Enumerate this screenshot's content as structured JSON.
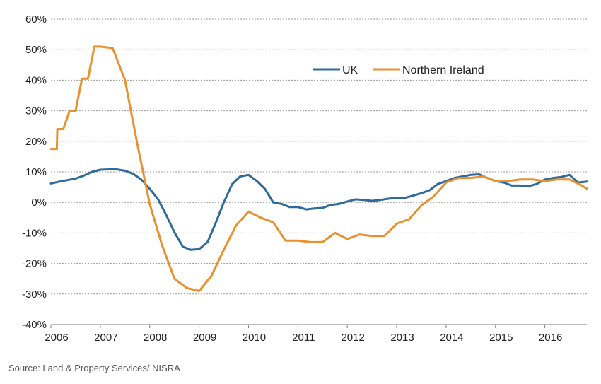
{
  "chart_data": {
    "type": "line",
    "title": "",
    "xlabel": "",
    "ylabel": "",
    "xlim": [
      2006.0,
      2016.85
    ],
    "ylim": [
      -40,
      60
    ],
    "y_ticks": [
      60,
      50,
      40,
      30,
      20,
      10,
      0,
      -10,
      -20,
      -30,
      -40
    ],
    "y_tick_labels": [
      "60%",
      "50%",
      "40%",
      "30%",
      "20%",
      "10%",
      "0%",
      "-10%",
      "-20%",
      "-30%",
      "-40%"
    ],
    "x_ticks": [
      2006,
      2007,
      2008,
      2009,
      2010,
      2011,
      2012,
      2013,
      2014,
      2015,
      2016
    ],
    "x_tick_labels": [
      "2006",
      "2007",
      "2008",
      "2009",
      "2010",
      "2011",
      "2012",
      "2013",
      "2014",
      "2015",
      "2016"
    ],
    "grid": "horizontal-dashed",
    "legend_position": "top-right",
    "series": [
      {
        "name": "UK",
        "color": "#2e6a9c",
        "x": [
          2006.0,
          2006.17,
          2006.33,
          2006.5,
          2006.67,
          2006.83,
          2007.0,
          2007.17,
          2007.33,
          2007.5,
          2007.67,
          2007.83,
          2008.0,
          2008.17,
          2008.33,
          2008.5,
          2008.67,
          2008.83,
          2009.0,
          2009.17,
          2009.33,
          2009.5,
          2009.67,
          2009.83,
          2010.0,
          2010.17,
          2010.33,
          2010.5,
          2010.67,
          2010.83,
          2011.0,
          2011.17,
          2011.33,
          2011.5,
          2011.67,
          2011.83,
          2012.0,
          2012.17,
          2012.33,
          2012.5,
          2012.67,
          2012.83,
          2013.0,
          2013.17,
          2013.33,
          2013.5,
          2013.67,
          2013.83,
          2014.0,
          2014.17,
          2014.33,
          2014.5,
          2014.67,
          2014.83,
          2015.0,
          2015.17,
          2015.33,
          2015.5,
          2015.67,
          2015.83,
          2016.0,
          2016.17,
          2016.33,
          2016.5,
          2016.67,
          2016.85
        ],
        "values": [
          6.2,
          6.8,
          7.3,
          7.8,
          8.8,
          10.0,
          10.7,
          10.8,
          10.8,
          10.4,
          9.3,
          7.5,
          4.5,
          1.0,
          -4.0,
          -9.8,
          -14.5,
          -15.5,
          -15.3,
          -13.0,
          -7.0,
          0.0,
          6.0,
          8.5,
          9.0,
          7.0,
          4.5,
          0.0,
          -0.5,
          -1.5,
          -1.5,
          -2.3,
          -2.0,
          -1.8,
          -0.8,
          -0.5,
          0.3,
          1.0,
          0.8,
          0.5,
          0.8,
          1.2,
          1.5,
          1.5,
          2.2,
          3.0,
          4.0,
          6.0,
          7.0,
          8.0,
          8.5,
          9.0,
          9.2,
          8.0,
          7.0,
          6.5,
          5.5,
          5.5,
          5.3,
          6.0,
          7.5,
          8.0,
          8.3,
          9.0,
          6.5,
          6.8
        ]
      },
      {
        "name": "Northern Ireland",
        "color": "#e8912d",
        "x": [
          2006.0,
          2006.12,
          2006.13,
          2006.25,
          2006.38,
          2006.5,
          2006.63,
          2006.75,
          2006.88,
          2007.0,
          2007.25,
          2007.5,
          2007.75,
          2008.0,
          2008.25,
          2008.5,
          2008.75,
          2009.0,
          2009.25,
          2009.5,
          2009.75,
          2010.0,
          2010.25,
          2010.5,
          2010.75,
          2011.0,
          2011.25,
          2011.5,
          2011.75,
          2012.0,
          2012.25,
          2012.5,
          2012.75,
          2013.0,
          2013.25,
          2013.5,
          2013.75,
          2014.0,
          2014.25,
          2014.5,
          2014.75,
          2015.0,
          2015.25,
          2015.5,
          2015.75,
          2016.0,
          2016.25,
          2016.5,
          2016.75,
          2016.85
        ],
        "values": [
          17.5,
          17.5,
          24.0,
          24.0,
          30.0,
          30.0,
          40.5,
          40.5,
          51.0,
          51.0,
          50.5,
          40.0,
          19.0,
          -0.5,
          -14.0,
          -25.0,
          -28.0,
          -29.0,
          -24.0,
          -15.5,
          -7.5,
          -3.0,
          -5.0,
          -6.5,
          -12.5,
          -12.5,
          -13.0,
          -13.0,
          -10.0,
          -12.0,
          -10.5,
          -11.0,
          -11.0,
          -7.0,
          -5.5,
          -1.0,
          2.0,
          6.5,
          8.0,
          8.0,
          8.5,
          7.0,
          7.0,
          7.5,
          7.5,
          7.0,
          7.5,
          7.5,
          5.5,
          4.5
        ]
      }
    ]
  },
  "source_text": "Source: Land & Property Services/ NISRA"
}
